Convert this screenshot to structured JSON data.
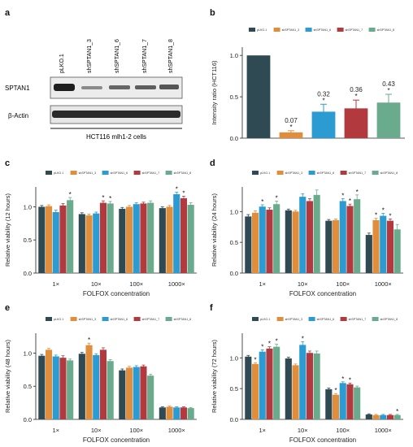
{
  "panels": {
    "a": {
      "letter": "a",
      "lanes": [
        "pLKO.1",
        "shSPTAN1_3",
        "shSPTAN1_6",
        "shSPTAN1_7",
        "shSPTAN1_8"
      ],
      "rows": [
        "SPTAN1",
        "β-Actin"
      ],
      "cell_line": "HCT116 mlh1-2 cells"
    },
    "b": {
      "letter": "b"
    },
    "c": {
      "letter": "c"
    },
    "d": {
      "letter": "d"
    },
    "e": {
      "letter": "e"
    },
    "f": {
      "letter": "f"
    }
  },
  "colors": {
    "pLKO.1": "#2f4a52",
    "shSPTAN1_3": "#e08e3c",
    "shSPTAN1_6": "#2b9bd1",
    "shSPTAN1_7": "#b23a3f",
    "shSPTAN1_8": "#6aab8e"
  },
  "chart_data": [
    {
      "panel": "b",
      "type": "bar",
      "categories": [
        "pLKO.1",
        "shSPTAN1_3",
        "shSPTAN1_6",
        "shSPTAN1_7",
        "shSPTAN1_8"
      ],
      "values": [
        1.0,
        0.07,
        0.32,
        0.36,
        0.43
      ],
      "errors": [
        0,
        0.02,
        0.09,
        0.1,
        0.1
      ],
      "data_labels": [
        "",
        "0.07",
        "0.32",
        "0.36",
        "0.43"
      ],
      "significant": [
        false,
        true,
        true,
        true,
        true
      ],
      "ylabel": "Intensity ratio (HCT116)",
      "ylim": [
        0,
        1.1
      ],
      "yticks": [
        "0.0",
        "0.5",
        "1.0"
      ],
      "legend": [
        "pLKO.1",
        "shSPTAN1_3",
        "shSPTAN1_6",
        "shSPTAN1_7",
        "shSPTAN1_8"
      ],
      "legend_position": "top"
    },
    {
      "panel": "c",
      "type": "bar",
      "categories": [
        "1×",
        "10×",
        "100×",
        "1000×"
      ],
      "series": [
        {
          "name": "pLKO.1",
          "values": [
            1.0,
            0.89,
            0.97,
            0.98
          ],
          "errors": [
            0.02,
            0.02,
            0.02,
            0.02
          ],
          "significant": [
            false,
            false,
            false,
            false
          ]
        },
        {
          "name": "shSPTAN1_3",
          "values": [
            1.01,
            0.87,
            1.0,
            1.0
          ],
          "errors": [
            0.02,
            0.02,
            0.02,
            0.02
          ],
          "significant": [
            false,
            false,
            false,
            false
          ]
        },
        {
          "name": "shSPTAN1_6",
          "values": [
            0.92,
            0.9,
            1.04,
            1.19
          ],
          "errors": [
            0.03,
            0.02,
            0.02,
            0.03
          ],
          "significant": [
            false,
            false,
            false,
            true
          ]
        },
        {
          "name": "shSPTAN1_7",
          "values": [
            1.02,
            1.06,
            1.05,
            1.13
          ],
          "errors": [
            0.03,
            0.03,
            0.02,
            0.03
          ],
          "significant": [
            false,
            true,
            false,
            true
          ]
        },
        {
          "name": "shSPTAN1_8",
          "values": [
            1.1,
            1.05,
            1.06,
            1.03
          ],
          "errors": [
            0.04,
            0.03,
            0.03,
            0.03
          ],
          "significant": [
            true,
            true,
            false,
            false
          ]
        }
      ],
      "xlabel": "FOLFOX concentration",
      "ylabel": "Relative viability (12 hours)",
      "ylim": [
        0,
        1.3
      ],
      "yticks": [
        "0.0",
        "0.5",
        "1.0"
      ],
      "legend": [
        "pLKO.1",
        "shSPTAN1_3",
        "shSPTAN1_6",
        "shSPTAN1_7",
        "shSPTAN1_8"
      ],
      "legend_position": "top"
    },
    {
      "panel": "d",
      "type": "bar",
      "categories": [
        "1×",
        "10×",
        "100×",
        "1000×"
      ],
      "series": [
        {
          "name": "pLKO.1",
          "values": [
            0.92,
            1.02,
            0.85,
            0.62
          ],
          "errors": [
            0.03,
            0.02,
            0.02,
            0.03
          ],
          "significant": [
            false,
            false,
            false,
            false
          ]
        },
        {
          "name": "shSPTAN1_3",
          "values": [
            0.98,
            1.0,
            0.86,
            0.86
          ],
          "errors": [
            0.03,
            0.02,
            0.02,
            0.03
          ],
          "significant": [
            false,
            false,
            false,
            true
          ]
        },
        {
          "name": "shSPTAN1_6",
          "values": [
            1.08,
            1.24,
            1.17,
            0.93
          ],
          "errors": [
            0.03,
            0.05,
            0.04,
            0.04
          ],
          "significant": [
            true,
            false,
            true,
            true
          ]
        },
        {
          "name": "shSPTAN1_7",
          "values": [
            1.03,
            1.17,
            1.09,
            0.85
          ],
          "errors": [
            0.03,
            0.04,
            0.03,
            0.03
          ],
          "significant": [
            false,
            false,
            true,
            true
          ]
        },
        {
          "name": "shSPTAN1_8",
          "values": [
            1.12,
            1.27,
            1.2,
            0.71
          ],
          "errors": [
            0.05,
            0.08,
            0.07,
            0.08
          ],
          "significant": [
            true,
            false,
            true,
            false
          ]
        }
      ],
      "xlabel": "FOLFOX concentration",
      "ylabel": "Relative viability (24 hours)",
      "ylim": [
        0,
        1.4
      ],
      "yticks": [
        "0.0",
        "0.5",
        "1.0"
      ],
      "legend": [
        "pLKO.1",
        "shSPTAN1_3",
        "shSPTAN1_6",
        "shSPTAN1_7",
        "shSPTAN1_8"
      ],
      "legend_position": "top"
    },
    {
      "panel": "e",
      "type": "bar",
      "categories": [
        "1×",
        "10×",
        "100×",
        "1000×"
      ],
      "series": [
        {
          "name": "pLKO.1",
          "values": [
            0.96,
            0.99,
            0.74,
            0.18
          ],
          "errors": [
            0.02,
            0.02,
            0.02,
            0.01
          ],
          "significant": [
            false,
            false,
            false,
            false
          ]
        },
        {
          "name": "shSPTAN1_3",
          "values": [
            1.05,
            1.12,
            0.78,
            0.19
          ],
          "errors": [
            0.02,
            0.03,
            0.02,
            0.01
          ],
          "significant": [
            false,
            true,
            false,
            false
          ]
        },
        {
          "name": "shSPTAN1_6",
          "values": [
            0.95,
            0.97,
            0.79,
            0.18
          ],
          "errors": [
            0.02,
            0.02,
            0.02,
            0.01
          ],
          "significant": [
            false,
            false,
            false,
            false
          ]
        },
        {
          "name": "shSPTAN1_7",
          "values": [
            0.93,
            1.05,
            0.8,
            0.18
          ],
          "errors": [
            0.03,
            0.03,
            0.02,
            0.01
          ],
          "significant": [
            false,
            false,
            false,
            false
          ]
        },
        {
          "name": "shSPTAN1_8",
          "values": [
            0.89,
            0.88,
            0.66,
            0.17
          ],
          "errors": [
            0.02,
            0.02,
            0.02,
            0.01
          ],
          "significant": [
            false,
            false,
            false,
            false
          ]
        }
      ],
      "xlabel": "FOLFOX concentration",
      "ylabel": "Relative viability (48 hours)",
      "ylim": [
        0,
        1.3
      ],
      "yticks": [
        "0.0",
        "0.5",
        "1.0"
      ],
      "legend": [
        "pLKO.1",
        "shSPTAN1_3",
        "shSPTAN1_6",
        "shSPTAN1_7",
        "shSPTAN1_8"
      ],
      "legend_position": "top"
    },
    {
      "panel": "f",
      "type": "bar",
      "categories": [
        "1×",
        "10×",
        "100×",
        "1000×"
      ],
      "series": [
        {
          "name": "pLKO.1",
          "values": [
            1.02,
            0.99,
            0.49,
            0.08
          ],
          "errors": [
            0.02,
            0.02,
            0.02,
            0.01
          ],
          "significant": [
            false,
            false,
            false,
            false
          ]
        },
        {
          "name": "shSPTAN1_3",
          "values": [
            0.9,
            0.88,
            0.4,
            0.07
          ],
          "errors": [
            0.02,
            0.02,
            0.02,
            0.01
          ],
          "significant": [
            true,
            false,
            true,
            false
          ]
        },
        {
          "name": "shSPTAN1_6",
          "values": [
            1.1,
            1.21,
            0.59,
            0.07
          ],
          "errors": [
            0.03,
            0.05,
            0.02,
            0.01
          ],
          "significant": [
            true,
            true,
            true,
            false
          ]
        },
        {
          "name": "shSPTAN1_7",
          "values": [
            1.15,
            1.08,
            0.57,
            0.07
          ],
          "errors": [
            0.03,
            0.03,
            0.02,
            0.01
          ],
          "significant": [
            true,
            false,
            true,
            false
          ]
        },
        {
          "name": "shSPTAN1_8",
          "values": [
            1.18,
            1.07,
            0.52,
            0.07
          ],
          "errors": [
            0.04,
            0.04,
            0.02,
            0.01
          ],
          "significant": [
            true,
            false,
            false,
            true
          ]
        }
      ],
      "xlabel": "FOLFOX concentration",
      "ylabel": "Relative viability (72 hours)",
      "ylim": [
        0,
        1.4
      ],
      "yticks": [
        "0.0",
        "0.5",
        "1.0"
      ],
      "legend": [
        "pLKO.1",
        "shSPTAN1_3",
        "shSPTAN1_6",
        "shSPTAN1_7",
        "shSPTAN1_8"
      ],
      "legend_position": "top"
    }
  ]
}
